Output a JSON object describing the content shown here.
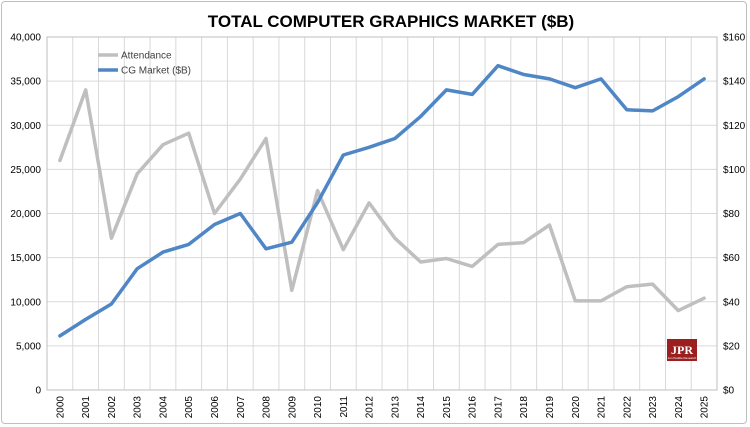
{
  "chart_data": {
    "type": "line",
    "title": "TOTAL COMPUTER GRAPHICS MARKET ($B)",
    "x": [
      "2000",
      "2001",
      "2002",
      "2003",
      "2004",
      "2005",
      "2006",
      "2007",
      "2008",
      "2009",
      "2010",
      "2011",
      "2012",
      "2013",
      "2014",
      "2015",
      "2016",
      "2017",
      "2018",
      "2019",
      "2020",
      "2021",
      "2022",
      "2023",
      "2024",
      "2025"
    ],
    "series": [
      {
        "name": "Attendance",
        "axis": "left",
        "color": "#bfbfbf",
        "values": [
          26000,
          34000,
          17200,
          24500,
          27800,
          29100,
          20000,
          23900,
          28500,
          11300,
          22600,
          15900,
          21200,
          17200,
          14500,
          14900,
          14000,
          16500,
          16700,
          18700,
          10100,
          10100,
          11700,
          12000,
          9000,
          10400
        ]
      },
      {
        "name": "CG Market ($B)",
        "axis": "right",
        "color": "#4f86c6",
        "values": [
          24.5,
          32,
          39,
          55,
          62.5,
          66,
          75,
          80,
          64,
          67,
          85,
          106.5,
          110,
          114,
          124,
          136,
          134,
          147,
          143,
          141,
          137,
          141,
          127,
          126.5,
          133,
          141
        ]
      }
    ],
    "y_left": {
      "min": 0,
      "max": 40000,
      "ticks": [
        "0",
        "5,000",
        "10,000",
        "15,000",
        "20,000",
        "25,000",
        "30,000",
        "35,000",
        "40,000"
      ]
    },
    "y_right": {
      "min": 0,
      "max": 160,
      "ticks": [
        "$0",
        "$20",
        "$40",
        "$60",
        "$80",
        "$100",
        "$120",
        "$140",
        "$160"
      ]
    },
    "grid": true,
    "legend_position": "top-left",
    "logo_text": "JPR",
    "logo_subtext": "Jon Peddie Research"
  }
}
